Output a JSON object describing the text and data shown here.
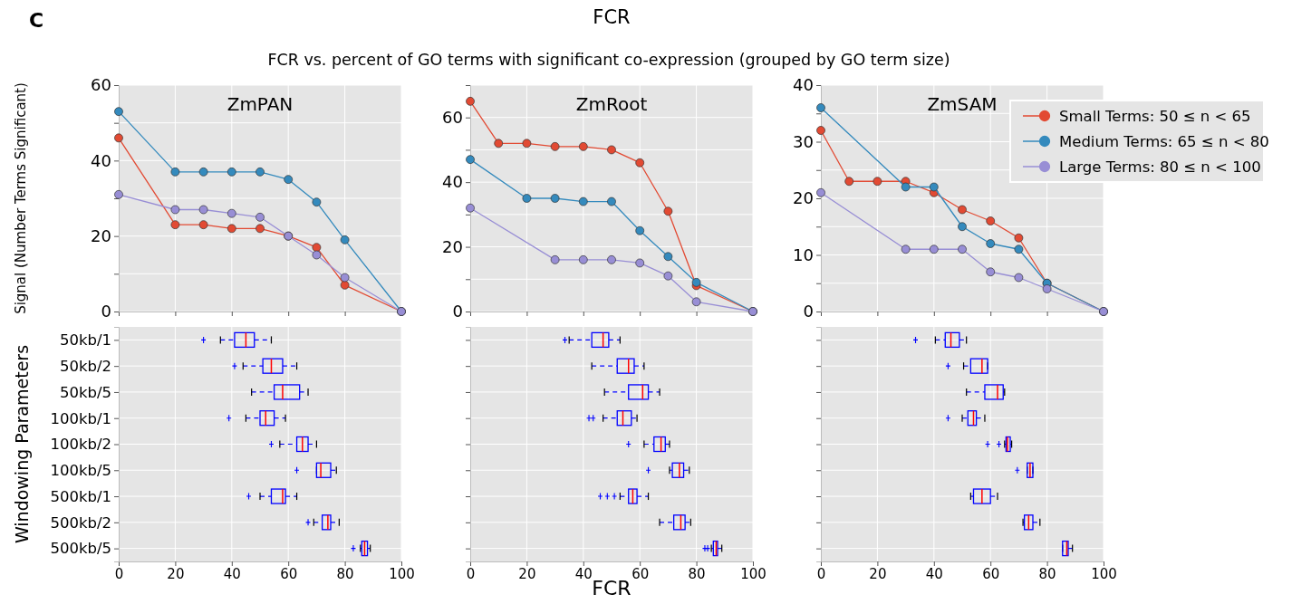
{
  "chart_data": [
    {
      "type": "line",
      "title": "ZmPAN",
      "ylabel": "Signal (Number Terms Significant)",
      "annotations": [
        "C",
        "FCR",
        "FCR vs. percent of GO terms with significant co-expression (grouped by GO term size)"
      ],
      "xlim": [
        0,
        100
      ],
      "xticks": [
        0,
        20,
        40,
        60,
        80,
        100
      ],
      "ylim": [
        0,
        60
      ],
      "yticks": [
        0,
        {
          "value": 10,
          "label": null
        },
        20,
        {
          "value": 30,
          "label": null
        },
        40,
        {
          "value": 50,
          "label": null
        },
        60
      ],
      "grid": true,
      "tick_labels": "y",
      "marker": "circle",
      "line_style": "solid",
      "series": [
        {
          "color": "#e24a33",
          "x": [
            0,
            20,
            30,
            40,
            50,
            60,
            70,
            80,
            100
          ],
          "values": [
            46,
            23,
            23,
            22,
            22,
            20,
            17,
            7,
            0
          ]
        },
        {
          "color": "#348abd",
          "x": [
            0,
            20,
            30,
            40,
            50,
            60,
            70,
            80,
            100
          ],
          "values": [
            53,
            37,
            37,
            37,
            37,
            35,
            29,
            19,
            0
          ]
        },
        {
          "color": "#988ed5",
          "x": [
            0,
            20,
            30,
            40,
            50,
            60,
            70,
            80,
            100
          ],
          "values": [
            31,
            27,
            27,
            26,
            25,
            20,
            15,
            9,
            0
          ]
        }
      ]
    },
    {
      "type": "line",
      "title": "ZmRoot",
      "xlim": [
        0,
        100
      ],
      "xticks": [
        0,
        20,
        40,
        60,
        80,
        100
      ],
      "ylim": [
        0,
        70
      ],
      "yticks": [
        0,
        {
          "value": 10,
          "label": null
        },
        20,
        {
          "value": 30,
          "label": null
        },
        40,
        {
          "value": 50,
          "label": null
        },
        60,
        {
          "value": 70,
          "label": null
        }
      ],
      "grid": true,
      "tick_labels": "y",
      "marker": "circle",
      "line_style": "solid",
      "series": [
        {
          "color": "#e24a33",
          "x": [
            0,
            10,
            20,
            30,
            40,
            50,
            60,
            70,
            80,
            100
          ],
          "values": [
            65,
            52,
            52,
            51,
            51,
            50,
            46,
            31,
            8,
            0
          ]
        },
        {
          "color": "#348abd",
          "x": [
            0,
            20,
            30,
            40,
            50,
            60,
            70,
            80,
            100
          ],
          "values": [
            47,
            35,
            35,
            34,
            34,
            25,
            17,
            9,
            0
          ]
        },
        {
          "color": "#988ed5",
          "x": [
            0,
            30,
            40,
            50,
            60,
            70,
            80,
            100
          ],
          "values": [
            32,
            16,
            16,
            16,
            15,
            11,
            3,
            0
          ]
        }
      ]
    },
    {
      "type": "line",
      "title": "ZmSAM",
      "xlim": [
        0,
        100
      ],
      "xticks": [
        0,
        20,
        40,
        60,
        80,
        100
      ],
      "ylim": [
        0,
        40
      ],
      "yticks": [
        0,
        {
          "value": 5,
          "label": null
        },
        10,
        {
          "value": 15,
          "label": null
        },
        20,
        {
          "value": 25,
          "label": null
        },
        30,
        {
          "value": 35,
          "label": null
        },
        40
      ],
      "grid": true,
      "tick_labels": "y",
      "marker": "circle",
      "line_style": "solid",
      "legend": "top right",
      "series": [
        {
          "name": "Small Terms: 50 ≤ n < 65",
          "color": "#e24a33",
          "x": [
            0,
            10,
            20,
            30,
            40,
            50,
            60,
            70,
            80,
            100
          ],
          "values": [
            32,
            23,
            23,
            23,
            21,
            18,
            16,
            13,
            5,
            0
          ]
        },
        {
          "name": "Medium Terms: 65 ≤ n < 80",
          "color": "#348abd",
          "x": [
            0,
            30,
            40,
            50,
            60,
            70,
            80,
            100
          ],
          "values": [
            36,
            22,
            22,
            15,
            12,
            11,
            5,
            0
          ]
        },
        {
          "name": "Large Terms: 80 ≤ n < 100",
          "color": "#988ed5",
          "x": [
            0,
            30,
            40,
            50,
            60,
            70,
            80,
            100
          ],
          "values": [
            21,
            11,
            11,
            11,
            7,
            6,
            4,
            0
          ]
        }
      ]
    },
    {
      "type": "box",
      "orientation": "horizontal",
      "ylabel": "Windowing Parameters",
      "categories": [
        "50kb/1",
        "50kb/2",
        "50kb/5",
        "100kb/1",
        "100kb/2",
        "100kb/5",
        "500kb/1",
        "500kb/2",
        "500kb/5"
      ],
      "color": "#0000ff",
      "xlim": [
        0,
        100
      ],
      "xticks": [
        0,
        20,
        40,
        60,
        80,
        100
      ],
      "grid": true,
      "boxes": [
        {
          "low": 36,
          "q1": 41,
          "median": 45,
          "q3": 48,
          "high": 54,
          "outliers": [
            30
          ]
        },
        {
          "low": 44,
          "q1": 51,
          "median": 54,
          "q3": 58,
          "high": 63,
          "outliers": [
            41
          ]
        },
        {
          "low": 47,
          "q1": 55,
          "median": 58,
          "q3": 64,
          "high": 67
        },
        {
          "low": 45,
          "q1": 50,
          "median": 52,
          "q3": 55,
          "high": 59,
          "outliers": [
            39
          ]
        },
        {
          "low": 57,
          "q1": 63,
          "median": 65,
          "q3": 67,
          "high": 70,
          "outliers": [
            54
          ]
        },
        {
          "low": 70,
          "q1": 70,
          "median": 71.5,
          "q3": 75,
          "high": 77,
          "outliers": [
            63
          ]
        },
        {
          "low": 50,
          "q1": 54,
          "median": 58,
          "q3": 59,
          "high": 63,
          "outliers": [
            46
          ]
        },
        {
          "low": 69,
          "q1": 72,
          "median": 74,
          "q3": 75,
          "high": 78,
          "outliers": [
            67
          ]
        },
        {
          "low": 85.5,
          "q1": 86,
          "median": 87,
          "q3": 88,
          "high": 89,
          "outliers": [
            83
          ]
        }
      ]
    },
    {
      "type": "box",
      "orientation": "horizontal",
      "xlabel": "FCR",
      "categories": [
        null,
        null,
        null,
        null,
        null,
        null,
        null,
        null,
        null
      ],
      "color": "#0000ff",
      "xlim": [
        0,
        100
      ],
      "xticks": [
        0,
        20,
        40,
        60,
        80,
        100
      ],
      "grid": true,
      "tick_labels": "x",
      "boxes": [
        {
          "low": 35,
          "q1": 43,
          "median": 47,
          "q3": 49,
          "high": 53,
          "outliers": [
            33.5
          ]
        },
        {
          "low": 43,
          "q1": 52,
          "median": 56,
          "q3": 58,
          "high": 61.5
        },
        {
          "low": 47.5,
          "q1": 56,
          "median": 61,
          "q3": 63,
          "high": 67
        },
        {
          "low": 47,
          "q1": 52,
          "median": 54,
          "q3": 57,
          "high": 59,
          "outliers": [
            42,
            43.5
          ]
        },
        {
          "low": 61.5,
          "q1": 65,
          "median": 67.5,
          "q3": 69,
          "high": 70.5,
          "outliers": [
            56
          ]
        },
        {
          "low": 70.5,
          "q1": 71.5,
          "median": 74,
          "q3": 75.5,
          "high": 77.5,
          "outliers": [
            63
          ]
        },
        {
          "low": 53,
          "q1": 56,
          "median": 57.5,
          "q3": 59,
          "high": 63,
          "outliers": [
            46,
            48.5,
            51
          ]
        },
        {
          "low": 67,
          "q1": 72,
          "median": 74.5,
          "q3": 76,
          "high": 78
        },
        {
          "low": 85.3,
          "q1": 86,
          "median": 87,
          "q3": 87.5,
          "high": 89,
          "outliers": [
            83,
            84
          ]
        }
      ]
    },
    {
      "type": "box",
      "orientation": "horizontal",
      "categories": [
        null,
        null,
        null,
        null,
        null,
        null,
        null,
        null,
        null
      ],
      "color": "#0000ff",
      "xlim": [
        0,
        100
      ],
      "xticks": [
        0,
        20,
        40,
        60,
        80,
        100
      ],
      "grid": true,
      "tick_labels": "x",
      "boxes": [
        {
          "low": 40.5,
          "q1": 44,
          "median": 46,
          "q3": 49,
          "high": 51.5,
          "outliers": [
            33.5
          ]
        },
        {
          "low": 50.5,
          "q1": 53,
          "median": 57,
          "q3": 59,
          "high": 59,
          "outliers": [
            45
          ]
        },
        {
          "low": 51.5,
          "q1": 58,
          "median": 62.5,
          "q3": 64.5,
          "high": 65
        },
        {
          "low": 50,
          "q1": 52,
          "median": 54,
          "q3": 55,
          "high": 58,
          "outliers": [
            45
          ]
        },
        {
          "low": 65,
          "q1": 65.5,
          "median": 66,
          "q3": 67,
          "high": 67.5,
          "outliers": [
            59,
            63
          ]
        },
        {
          "low": 73,
          "q1": 73,
          "median": 74,
          "q3": 75,
          "high": 75,
          "outliers": [
            69.5
          ]
        },
        {
          "low": 53,
          "q1": 54,
          "median": 57,
          "q3": 60,
          "high": 62.5
        },
        {
          "low": 71.5,
          "q1": 72,
          "median": 73.5,
          "q3": 75,
          "high": 77.5
        },
        {
          "low": 85.5,
          "q1": 85.5,
          "median": 87,
          "q3": 87.5,
          "high": 89
        }
      ]
    }
  ]
}
